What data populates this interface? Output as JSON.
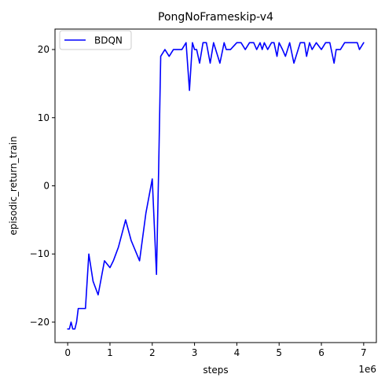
{
  "chart_data": {
    "type": "line",
    "title": "PongNoFrameskip-v4",
    "xlabel": "steps",
    "ylabel": "episodic_return_train",
    "x_offset_label": "1e6",
    "xlim": [
      -0.3,
      7.3
    ],
    "ylim": [
      -23,
      23
    ],
    "x_ticks": [
      0,
      1,
      2,
      3,
      4,
      5,
      6,
      7
    ],
    "x_tick_labels": [
      "0",
      "1",
      "2",
      "3",
      "4",
      "5",
      "6",
      "7"
    ],
    "y_ticks": [
      -20,
      -10,
      0,
      10,
      20
    ],
    "y_tick_labels": [
      "−20",
      "−10",
      "0",
      "10",
      "20"
    ],
    "grid": false,
    "legend_position": "upper-left",
    "series": [
      {
        "name": "BDQN",
        "color": "#0000ff",
        "x": [
          0.0,
          0.04,
          0.08,
          0.12,
          0.17,
          0.21,
          0.25,
          0.3,
          0.37,
          0.42,
          0.5,
          0.6,
          0.72,
          0.87,
          1.0,
          1.08,
          1.2,
          1.37,
          1.5,
          1.7,
          1.85,
          2.0,
          2.05,
          2.1,
          2.15,
          2.2,
          2.3,
          2.4,
          2.5,
          2.6,
          2.7,
          2.8,
          2.88,
          2.95,
          3.0,
          3.05,
          3.12,
          3.2,
          3.28,
          3.37,
          3.45,
          3.5,
          3.6,
          3.7,
          3.75,
          3.85,
          4.0,
          4.1,
          4.2,
          4.3,
          4.4,
          4.47,
          4.55,
          4.6,
          4.65,
          4.73,
          4.82,
          4.88,
          4.95,
          5.0,
          5.08,
          5.15,
          5.25,
          5.35,
          5.5,
          5.6,
          5.65,
          5.72,
          5.78,
          5.88,
          6.0,
          6.1,
          6.2,
          6.3,
          6.35,
          6.45,
          6.55,
          6.6,
          6.7,
          6.78,
          6.85,
          6.9,
          7.0
        ],
        "y": [
          -21,
          -21,
          -20,
          -21,
          -21,
          -20,
          -18,
          -18,
          -18,
          -18,
          -10,
          -14,
          -16,
          -11,
          -12,
          -11,
          -9,
          -5,
          -8,
          -11,
          -4,
          1,
          -6,
          -13,
          2,
          19,
          20,
          19,
          20,
          20,
          20,
          21,
          14,
          21,
          20,
          20,
          18,
          21,
          21,
          18,
          21,
          20,
          18,
          21,
          20,
          20,
          21,
          21,
          20,
          21,
          21,
          20,
          21,
          20,
          21,
          20,
          21,
          21,
          19,
          21,
          20,
          19,
          21,
          18,
          21,
          21,
          19,
          21,
          20,
          21,
          20,
          21,
          21,
          18,
          20,
          20,
          21,
          21,
          21,
          21,
          21,
          20,
          21
        ]
      }
    ]
  }
}
